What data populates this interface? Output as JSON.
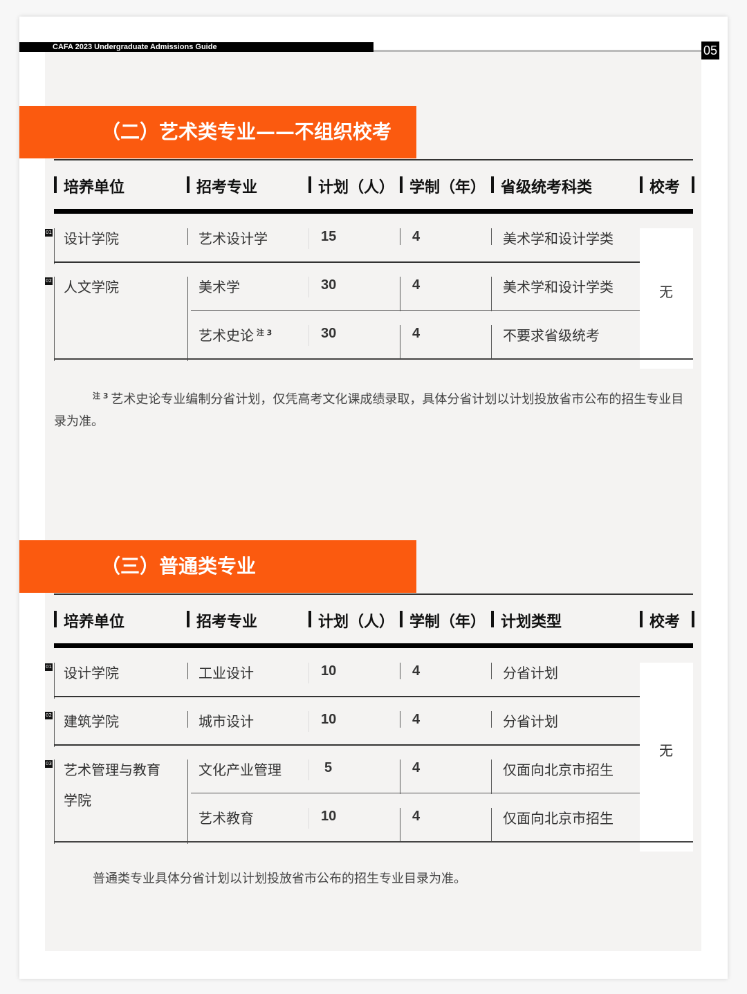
{
  "header": {
    "title": "CAFA  2023 Undergraduate Admissions Guide",
    "page_number": "05"
  },
  "colors": {
    "accent": "#fb5a0f",
    "bar": "#000000"
  },
  "sections": [
    {
      "title": "（二）艺术类专业——不组织校考",
      "headers": [
        "培养单位",
        "招考专业",
        "计划（人）",
        "学制（年）",
        "省级统考科类",
        "校考"
      ],
      "school_exam": "无",
      "rows": [
        {
          "no": "01",
          "unit": [
            "设计学院"
          ],
          "majors": [
            {
              "name": "艺术设计学",
              "note": "",
              "plan": "15",
              "years": "4",
              "category": "美术学和设计学类"
            }
          ]
        },
        {
          "no": "02",
          "unit": [
            "人文学院"
          ],
          "majors": [
            {
              "name": "美术学",
              "note": "",
              "plan": "30",
              "years": "4",
              "category": "美术学和设计学类"
            },
            {
              "name": "艺术史论",
              "note": "注 3",
              "plan": "30",
              "years": "4",
              "category": "不要求省级统考"
            }
          ]
        }
      ],
      "note_mark": "注 3",
      "note": "艺术史论专业编制分省计划，仅凭高考文化课成绩录取，具体分省计划以计划投放省市公布的招生专业目录为准。"
    },
    {
      "title": "（三）普通类专业",
      "headers": [
        "培养单位",
        "招考专业",
        "计划（人）",
        "学制（年）",
        "计划类型",
        "校考"
      ],
      "school_exam": "无",
      "rows": [
        {
          "no": "01",
          "unit": [
            "设计学院"
          ],
          "majors": [
            {
              "name": "工业设计",
              "note": "",
              "plan": "10",
              "years": "4",
              "category": "分省计划"
            }
          ]
        },
        {
          "no": "02",
          "unit": [
            "建筑学院"
          ],
          "majors": [
            {
              "name": "城市设计",
              "note": "",
              "plan": "10",
              "years": "4",
              "category": "分省计划"
            }
          ]
        },
        {
          "no": "03",
          "unit": [
            "艺术管理与教育",
            "学院"
          ],
          "majors": [
            {
              "name": "文化产业管理",
              "note": "",
              "plan": "5",
              "years": "4",
              "category": "仅面向北京市招生"
            },
            {
              "name": "艺术教育",
              "note": "",
              "plan": "10",
              "years": "4",
              "category": "仅面向北京市招生"
            }
          ]
        }
      ],
      "note_mark": "",
      "note": "普通类专业具体分省计划以计划投放省市公布的招生专业目录为准。"
    }
  ]
}
